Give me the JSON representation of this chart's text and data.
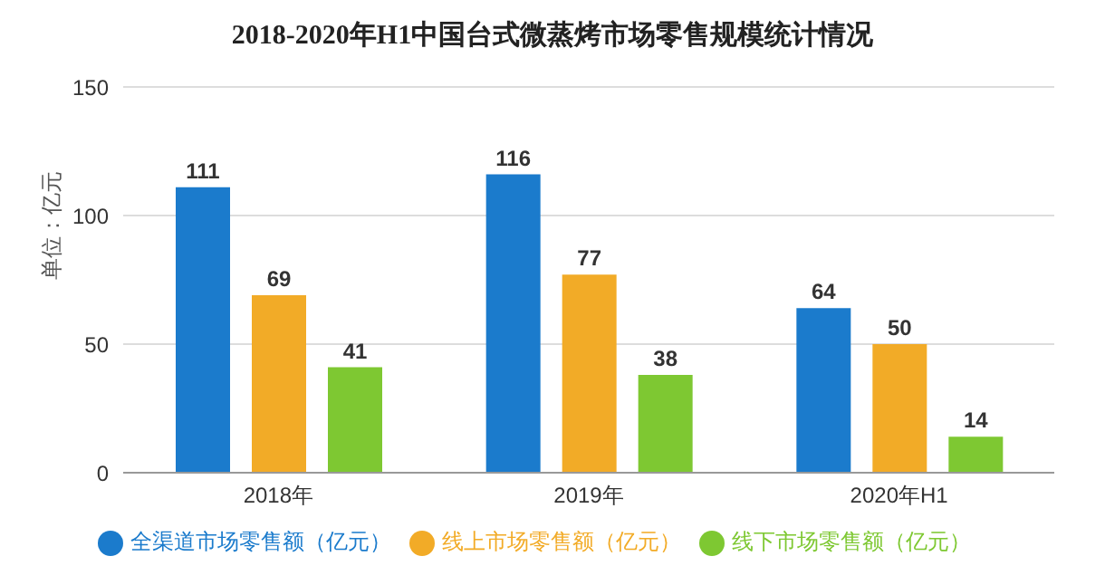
{
  "chart_data": {
    "type": "bar",
    "title": "2018-2020年H1中国台式微蒸烤市场零售规模统计情况",
    "ylabel": "单位：亿元",
    "categories": [
      "2018年",
      "2019年",
      "2020年H1"
    ],
    "series": [
      {
        "name": "全渠道市场零售额（亿元）",
        "color": "#1b7bcc",
        "values": [
          111,
          116,
          64
        ]
      },
      {
        "name": "线上市场零售额（亿元）",
        "color": "#f2ab27",
        "values": [
          69,
          77,
          50
        ]
      },
      {
        "name": "线下市场零售额（亿元）",
        "color": "#7ec832",
        "values": [
          41,
          38,
          14
        ]
      }
    ],
    "ylim": [
      0,
      150
    ],
    "yticks": [
      0,
      50,
      100,
      150
    ],
    "grid": "y",
    "legend": "bottom",
    "data_labels": true
  }
}
